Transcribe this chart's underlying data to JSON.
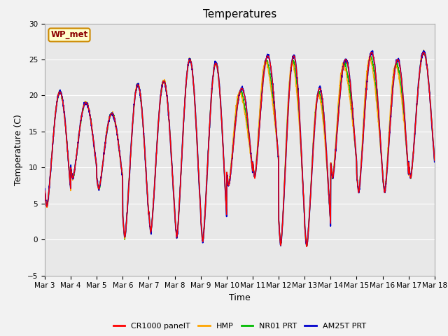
{
  "title": "Temperatures",
  "xlabel": "Time",
  "ylabel": "Temperature (C)",
  "ylim": [
    -5,
    30
  ],
  "fig_bg_color": "#f2f2f2",
  "plot_bg_color": "#e8e8e8",
  "legend_entries": [
    "CR1000 panelT",
    "HMP",
    "NR01 PRT",
    "AM25T PRT"
  ],
  "legend_colors": [
    "#ff0000",
    "#ffa500",
    "#00bb00",
    "#0000cc"
  ],
  "annotation_text": "WP_met",
  "annotation_bg": "#ffffcc",
  "annotation_border": "#cc8800",
  "xtick_labels": [
    "Mar 3",
    "Mar 4",
    "Mar 5",
    "Mar 6",
    "Mar 7",
    "Mar 8",
    "Mar 9",
    "Mar 10",
    "Mar 11",
    "Mar 12",
    "Mar 13",
    "Mar 14",
    "Mar 15",
    "Mar 16",
    "Mar 17",
    "Mar 18"
  ],
  "ytick_values": [
    -5,
    0,
    5,
    10,
    15,
    20,
    25,
    30
  ],
  "grid_color": "#ffffff",
  "line_width": 1.0,
  "n_days": 15,
  "n_pts_per_day": 144,
  "day_mins": [
    4.5,
    8.5,
    7.0,
    0.3,
    1.0,
    0.3,
    -0.3,
    7.5,
    8.5,
    -0.8,
    -1.0,
    8.5,
    6.5,
    6.5,
    8.5
  ],
  "day_maxs": [
    20.5,
    19.0,
    17.5,
    21.5,
    22.0,
    25.0,
    24.5,
    21.0,
    25.5,
    25.5,
    21.0,
    25.0,
    26.0,
    25.0,
    26.0
  ]
}
